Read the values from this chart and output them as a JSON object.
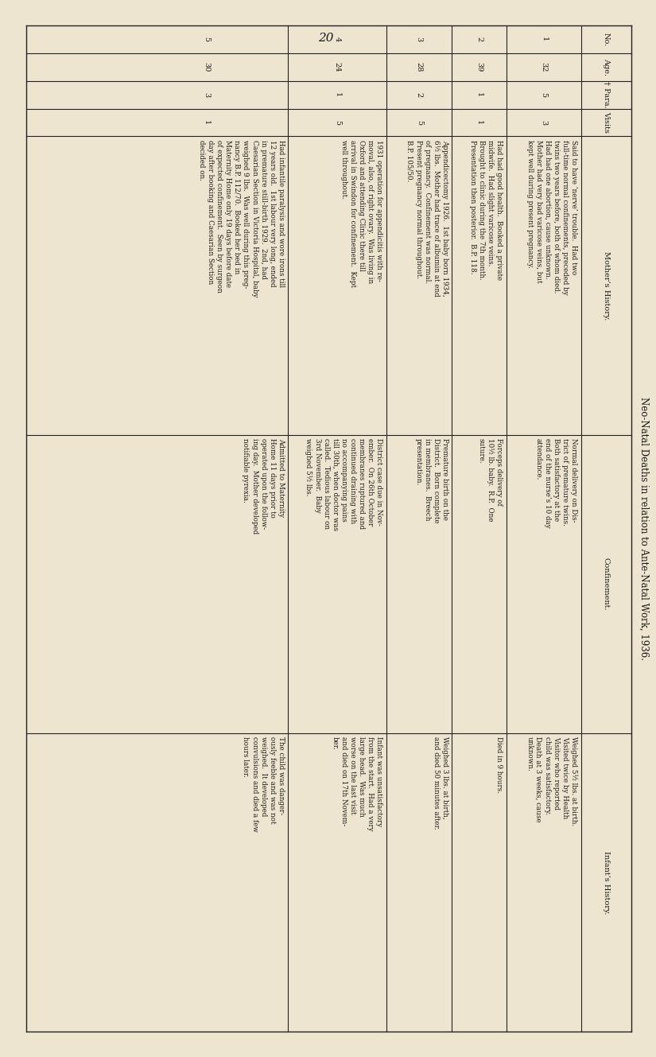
{
  "page_number": "20",
  "title": "Neo-Natal Deaths in relation to Ante-Natal Work, 1936.",
  "bg_color": "#ede5d0",
  "text_color": "#1a1a1a",
  "rows": [
    {
      "no": "1",
      "age": "32",
      "para": "5",
      "visits": "3",
      "mother": "Said to have ‘nerve’ trouble.  Had two\nfull-time normal confinements, preceded by\ntwins two years before, both of whom died.\nHad had one abortion, cause unknown.\nMother had very bad varicose veins, but\nkept well during present pregnancy.",
      "confinement": "Normal delivery on Dis-\ntrict of premature twins.\nBoth satisfactory at the\nend of the nurse’s 10 day\nattendance.",
      "infant": "Weighed 5½ lbs. at birth.\nVisited twice by Health\nVisitor who reported\nchild was satisfactory.\nDeath at 3 weeks, cause\nunknown."
    },
    {
      "no": "2",
      "age": "39",
      "para": "1",
      "visits": "1",
      "mother": "Had had good health.  Booked a private\nmidwife.  Had slight varicose veins.\nBrought to clinic during the 7th month.\nPresentation then posterior.  B.P. 118.",
      "confinement": "Forceps delivery of\n10½ lb. baby.  R.P.  One\nsuture.",
      "infant": "Died in 9 hours."
    },
    {
      "no": "3",
      "age": "28",
      "para": "2",
      "visits": "5",
      "mother": "Appendicectomy 1926.  1st baby born 1934,\n6½ lbs.  Mother had trace of albumin at end\nof pregnancy.  Confinement was normal.\nPresent pregnancy normal throughout.\nB.P. 105/50.",
      "confinement": "Premature birth on the\nDistrict.  Born complete\nin membranes.  Breech\npresentation.",
      "infant": "Weighed 3 lbs. at birth,\nand died 50 minutes after."
    },
    {
      "no": "4",
      "age": "24",
      "para": "1",
      "visits": "5",
      "mother": "1931 operation for appendicitis with re-\nmoval, also, of right ovary.  Was living in\nOxford and attending Clinic there till\narrival in Swindon for confinement.  Kept\nwell throughout.",
      "confinement": "District case due in Nov-\nember.  On 26th October\nmembranes ruptured and\ncontinued draining with\nno accompanying pains\ntill 30th, when doctor was\ncalled.  Tedious labour on\n3rd November.  Baby\nweighed 5½ lbs.",
      "infant": "Infant was unsatisfactory\nfrom the start.  Had a very\nlarge head.  Was much\nworse on the last visit\nand died on 17th Novem-\nber."
    },
    {
      "no": "5",
      "age": "30",
      "para": "3",
      "visits": "1",
      "mother": "Had infantile paralysis and wore irons till\n12 years old.  1st labour very long, ended\nin premature still-birth 1929.  2nd, had\nCaesarian Section in Victoria Hospital, baby\nweighed 9 lbs.  Was well during this preg-\nnancy B.P. 112/70.  Booked her bed in\nMaternity Home only 19 days before date\nof expected confinement.  Seen by surgeon\nday after booking and Caesarian Section\ndecided on.",
      "confinement": "Admitted to Maternity\nHome 11 days prior to\noperated upon the follow-\ning day.  Mother developed\nnotifiable pyrexia.",
      "infant": "The child was danger-\nously feeble and was not\nweighed.  It developed\nconvulsions and died a few\nhours later."
    }
  ]
}
